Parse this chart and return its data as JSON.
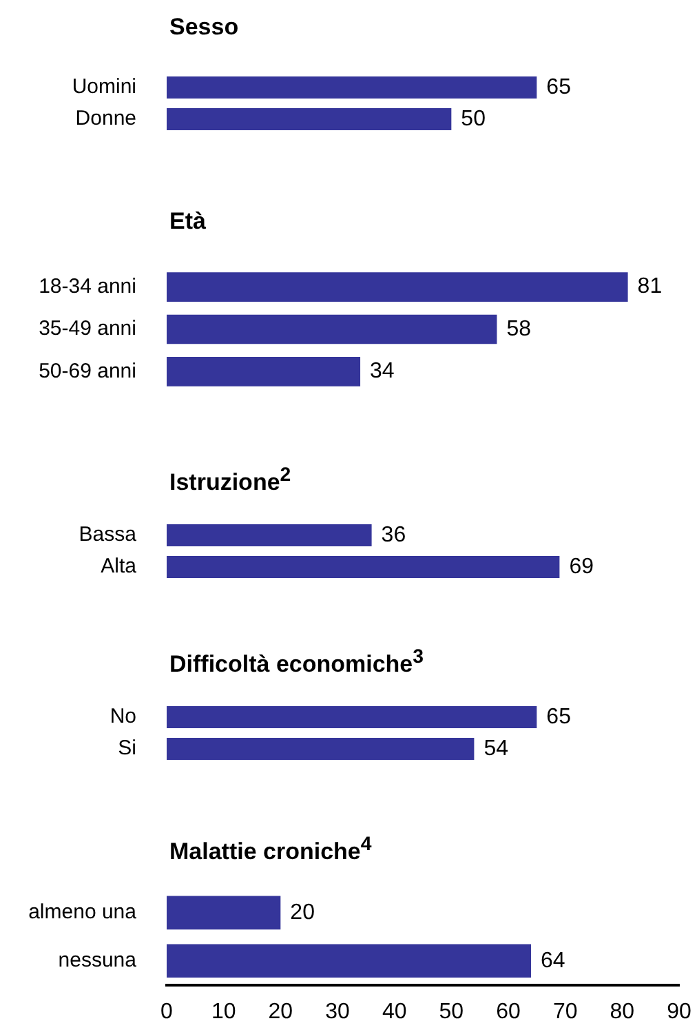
{
  "chart_data": [
    {
      "type": "bar",
      "orientation": "horizontal",
      "title": "Sesso",
      "categories": [
        "Uomini",
        "Donne"
      ],
      "values": [
        65,
        50
      ],
      "color": "#35359a",
      "xlim": [
        0,
        90
      ],
      "tick_labels": "y",
      "grid": false,
      "legend": false,
      "data_labels": true
    },
    {
      "type": "bar",
      "orientation": "horizontal",
      "title": "Età",
      "categories": [
        "18-34 anni",
        "35-49 anni",
        "50-69 anni"
      ],
      "values": [
        81,
        58,
        34
      ],
      "color": "#35359a",
      "xlim": [
        0,
        90
      ],
      "tick_labels": "y",
      "grid": false,
      "legend": false,
      "data_labels": true
    },
    {
      "type": "bar",
      "orientation": "horizontal",
      "title": "Istruzione$^{2}$",
      "categories": [
        "Bassa",
        "Alta"
      ],
      "values": [
        36,
        69
      ],
      "color": "#35359a",
      "xlim": [
        0,
        90
      ],
      "tick_labels": "y",
      "grid": false,
      "legend": false,
      "data_labels": true
    },
    {
      "type": "bar",
      "orientation": "horizontal",
      "title": "Difficoltà economiche$^{3}$",
      "categories": [
        "No",
        "Si"
      ],
      "values": [
        65,
        54
      ],
      "color": "#35359a",
      "xlim": [
        0,
        90
      ],
      "tick_labels": "y",
      "grid": false,
      "legend": false,
      "data_labels": true
    },
    {
      "type": "bar",
      "orientation": "horizontal",
      "title": "Malattie croniche$^{4}$",
      "categories": [
        "almeno una",
        "nessuna"
      ],
      "values": [
        20,
        64
      ],
      "color": "#35359a",
      "xlim": [
        0,
        90
      ],
      "xticks": [
        0,
        10,
        20,
        30,
        40,
        50,
        60,
        70,
        80,
        90
      ],
      "grid": false,
      "legend": false,
      "data_labels": true
    }
  ]
}
